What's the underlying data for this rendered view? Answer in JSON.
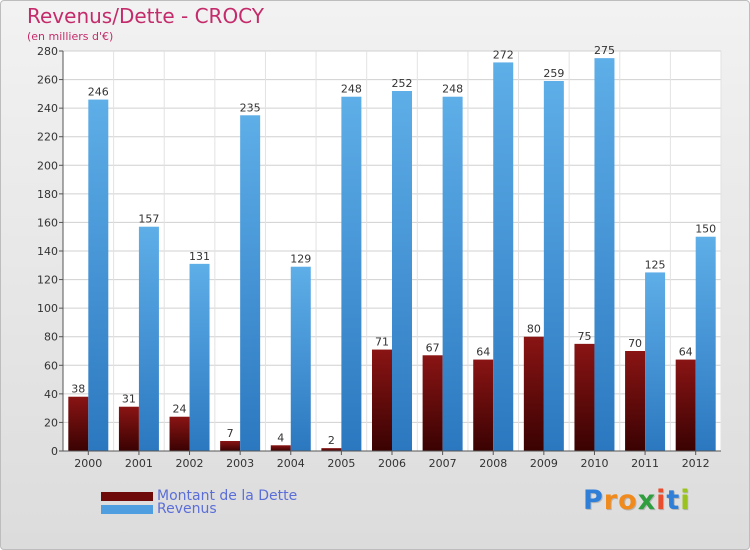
{
  "title": "Revenus/Dette - CROCY",
  "subtitle": "(en milliers d'€)",
  "logo": {
    "letters": [
      "P",
      "r",
      "o",
      "x",
      "i",
      "t",
      "i"
    ],
    "colors": [
      "#2f7fd9",
      "#f08a1c",
      "#f08a1c",
      "#2f9e3f",
      "#e84d2d",
      "#2f7fd9",
      "#9bc31f"
    ]
  },
  "colors": {
    "dette": "#6e0a0a",
    "revenus": "#4f9fe0",
    "title": "#c42b6a",
    "legend_text": "#5b6ed8"
  },
  "chart_data": {
    "type": "bar",
    "title": "Revenus/Dette - CROCY",
    "ylabel": "(en milliers d'€)",
    "ylim": [
      0,
      280
    ],
    "yticks": [
      0,
      20,
      40,
      60,
      80,
      100,
      120,
      140,
      160,
      180,
      200,
      220,
      240,
      260,
      280
    ],
    "grid": true,
    "legend_position": "bottom-left",
    "categories": [
      "2000",
      "2001",
      "2002",
      "2003",
      "2004",
      "2005",
      "2006",
      "2007",
      "2008",
      "2009",
      "2010",
      "2011",
      "2012"
    ],
    "series": [
      {
        "name": "Montant de la Dette",
        "color": "#6e0a0a",
        "values": [
          38,
          31,
          24,
          7,
          4,
          2,
          71,
          67,
          64,
          80,
          75,
          70,
          64
        ]
      },
      {
        "name": "Revenus",
        "color": "#4f9fe0",
        "values": [
          246,
          157,
          131,
          235,
          129,
          248,
          252,
          248,
          272,
          259,
          275,
          125,
          150
        ]
      }
    ]
  }
}
